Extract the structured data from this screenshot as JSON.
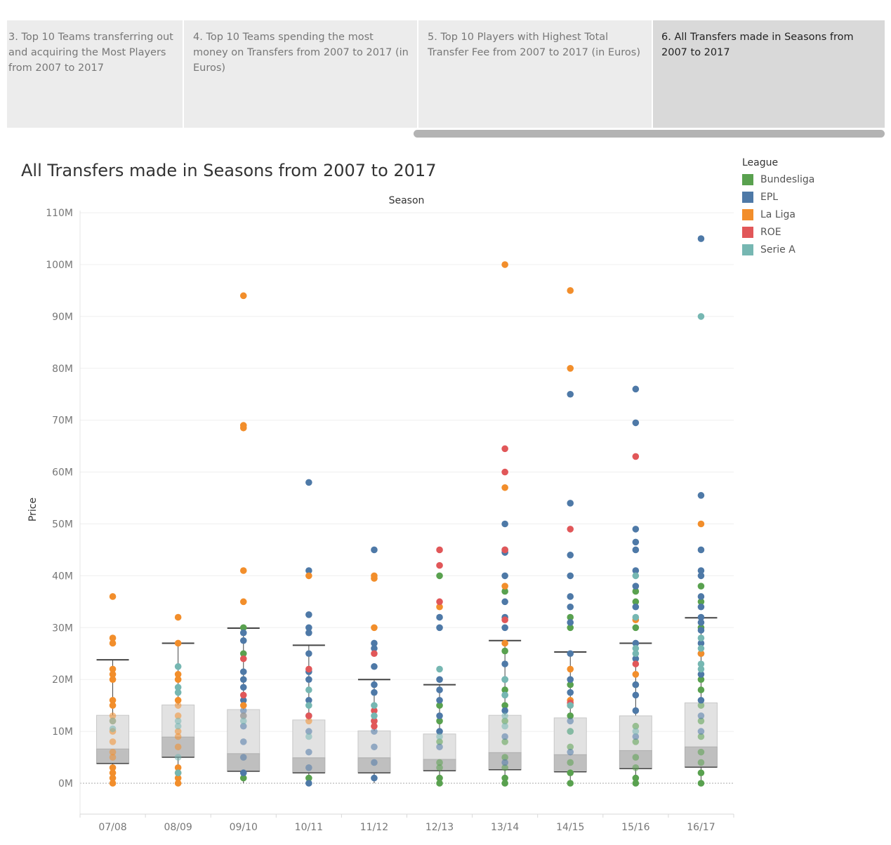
{
  "tabs": [
    {
      "label": "3. Top 10 Teams transferring out and acquiring the Most Players from 2007 to 2017",
      "active": false
    },
    {
      "label": "4. Top 10 Teams spending the most money on Transfers from 2007 to 2017 (in Euros)",
      "active": false
    },
    {
      "label": "5. Top 10 Players with Highest Total Transfer Fee from 2007 to 2017 (in Euros)",
      "active": false
    },
    {
      "label": "6. All Transfers made in Seasons from 2007 to 2017",
      "active": true
    }
  ],
  "legend": {
    "title": "League",
    "items": [
      {
        "label": "Bundesliga",
        "color": "#59a14f"
      },
      {
        "label": "EPL",
        "color": "#4e79a7"
      },
      {
        "label": "La Liga",
        "color": "#f28e2b"
      },
      {
        "label": "ROE",
        "color": "#e15759"
      },
      {
        "label": "Serie A",
        "color": "#76b7b2"
      }
    ]
  },
  "chart_data": {
    "type": "scatter",
    "title": "All Transfers made in Seasons from 2007 to 2017",
    "xlabel": "Season",
    "ylabel": "Price",
    "ylim": [
      -6,
      111
    ],
    "y_ticks": [
      "0M",
      "10M",
      "20M",
      "30M",
      "40M",
      "50M",
      "60M",
      "70M",
      "80M",
      "90M",
      "100M",
      "110M"
    ],
    "categories": [
      "07/08",
      "08/09",
      "09/10",
      "10/11",
      "11/12",
      "12/13",
      "13/14",
      "14/15",
      "15/16",
      "16/17"
    ],
    "boxplots": [
      {
        "season": "07/08",
        "lower_whisker": 0,
        "q1": 3.8,
        "median": 6.6,
        "q3": 13.1,
        "upper_whisker": 23.8
      },
      {
        "season": "08/09",
        "lower_whisker": 0,
        "q1": 5.0,
        "median": 8.9,
        "q3": 15.1,
        "upper_whisker": 27.0
      },
      {
        "season": "09/10",
        "lower_whisker": 0,
        "q1": 2.3,
        "median": 5.7,
        "q3": 14.2,
        "upper_whisker": 29.9
      },
      {
        "season": "10/11",
        "lower_whisker": 0,
        "q1": 2.0,
        "median": 4.9,
        "q3": 12.2,
        "upper_whisker": 26.6
      },
      {
        "season": "11/12",
        "lower_whisker": 0,
        "q1": 2.0,
        "median": 4.9,
        "q3": 10.1,
        "upper_whisker": 20.0
      },
      {
        "season": "12/13",
        "lower_whisker": 0,
        "q1": 2.4,
        "median": 4.6,
        "q3": 9.5,
        "upper_whisker": 19.0
      },
      {
        "season": "13/14",
        "lower_whisker": 0,
        "q1": 2.6,
        "median": 5.9,
        "q3": 13.1,
        "upper_whisker": 27.5
      },
      {
        "season": "14/15",
        "lower_whisker": 0,
        "q1": 2.2,
        "median": 5.5,
        "q3": 12.6,
        "upper_whisker": 25.3
      },
      {
        "season": "15/16",
        "lower_whisker": 0,
        "q1": 2.8,
        "median": 6.3,
        "q3": 13.0,
        "upper_whisker": 27.0
      },
      {
        "season": "16/17",
        "lower_whisker": 0,
        "q1": 3.1,
        "median": 7.0,
        "q3": 15.5,
        "upper_whisker": 31.9
      }
    ],
    "series": [
      {
        "name": "Bundesliga",
        "points": [
          [
            "09/10",
            30
          ],
          [
            "09/10",
            25
          ],
          [
            "09/10",
            1
          ],
          [
            "10/11",
            1
          ],
          [
            "12/13",
            40
          ],
          [
            "12/13",
            15
          ],
          [
            "12/13",
            12
          ],
          [
            "12/13",
            8
          ],
          [
            "12/13",
            4
          ],
          [
            "12/13",
            3
          ],
          [
            "12/13",
            1
          ],
          [
            "12/13",
            0
          ],
          [
            "13/14",
            37
          ],
          [
            "13/14",
            25.5
          ],
          [
            "13/14",
            18
          ],
          [
            "13/14",
            15
          ],
          [
            "13/14",
            12
          ],
          [
            "13/14",
            8
          ],
          [
            "13/14",
            5
          ],
          [
            "13/14",
            3
          ],
          [
            "13/14",
            1
          ],
          [
            "13/14",
            0
          ],
          [
            "14/15",
            32
          ],
          [
            "14/15",
            30
          ],
          [
            "14/15",
            19
          ],
          [
            "14/15",
            13
          ],
          [
            "14/15",
            10
          ],
          [
            "14/15",
            7
          ],
          [
            "14/15",
            4
          ],
          [
            "14/15",
            2
          ],
          [
            "14/15",
            0
          ],
          [
            "15/16",
            37
          ],
          [
            "15/16",
            35
          ],
          [
            "15/16",
            30
          ],
          [
            "15/16",
            19
          ],
          [
            "15/16",
            11
          ],
          [
            "15/16",
            8
          ],
          [
            "15/16",
            5
          ],
          [
            "15/16",
            3
          ],
          [
            "15/16",
            1
          ],
          [
            "15/16",
            0
          ],
          [
            "16/17",
            38
          ],
          [
            "16/17",
            35
          ],
          [
            "16/17",
            30
          ],
          [
            "16/17",
            20
          ],
          [
            "16/17",
            18
          ],
          [
            "16/17",
            15
          ],
          [
            "16/17",
            12
          ],
          [
            "16/17",
            9
          ],
          [
            "16/17",
            6
          ],
          [
            "16/17",
            4
          ],
          [
            "16/17",
            2
          ],
          [
            "16/17",
            0
          ]
        ]
      },
      {
        "name": "EPL",
        "points": [
          [
            "09/10",
            29
          ],
          [
            "09/10",
            27.5
          ],
          [
            "09/10",
            21.5
          ],
          [
            "09/10",
            20
          ],
          [
            "09/10",
            18.5
          ],
          [
            "09/10",
            16
          ],
          [
            "09/10",
            14
          ],
          [
            "09/10",
            11
          ],
          [
            "09/10",
            8
          ],
          [
            "09/10",
            5
          ],
          [
            "09/10",
            2
          ],
          [
            "10/11",
            58
          ],
          [
            "10/11",
            41
          ],
          [
            "10/11",
            32.5
          ],
          [
            "10/11",
            30
          ],
          [
            "10/11",
            29
          ],
          [
            "10/11",
            25
          ],
          [
            "10/11",
            21.5
          ],
          [
            "10/11",
            20
          ],
          [
            "10/11",
            16
          ],
          [
            "10/11",
            13
          ],
          [
            "10/11",
            10
          ],
          [
            "10/11",
            6
          ],
          [
            "10/11",
            3
          ],
          [
            "10/11",
            0
          ],
          [
            "11/12",
            45
          ],
          [
            "11/12",
            27
          ],
          [
            "11/12",
            26
          ],
          [
            "11/12",
            22.5
          ],
          [
            "11/12",
            19
          ],
          [
            "11/12",
            17.5
          ],
          [
            "11/12",
            12
          ],
          [
            "11/12",
            10
          ],
          [
            "11/12",
            7
          ],
          [
            "11/12",
            4
          ],
          [
            "11/12",
            1
          ],
          [
            "12/13",
            32
          ],
          [
            "12/13",
            30
          ],
          [
            "12/13",
            20
          ],
          [
            "12/13",
            18
          ],
          [
            "12/13",
            16
          ],
          [
            "12/13",
            13
          ],
          [
            "12/13",
            10
          ],
          [
            "12/13",
            7
          ],
          [
            "13/14",
            50
          ],
          [
            "13/14",
            45
          ],
          [
            "13/14",
            44.5
          ],
          [
            "13/14",
            40
          ],
          [
            "13/14",
            35
          ],
          [
            "13/14",
            32
          ],
          [
            "13/14",
            30
          ],
          [
            "13/14",
            23
          ],
          [
            "13/14",
            20
          ],
          [
            "13/14",
            17
          ],
          [
            "13/14",
            14
          ],
          [
            "13/14",
            9
          ],
          [
            "13/14",
            4
          ],
          [
            "14/15",
            75
          ],
          [
            "14/15",
            54
          ],
          [
            "14/15",
            44
          ],
          [
            "14/15",
            40
          ],
          [
            "14/15",
            36
          ],
          [
            "14/15",
            34
          ],
          [
            "14/15",
            31
          ],
          [
            "14/15",
            25
          ],
          [
            "14/15",
            20
          ],
          [
            "14/15",
            17.5
          ],
          [
            "14/15",
            12
          ],
          [
            "14/15",
            6
          ],
          [
            "15/16",
            76
          ],
          [
            "15/16",
            69.5
          ],
          [
            "15/16",
            49
          ],
          [
            "15/16",
            46.5
          ],
          [
            "15/16",
            45
          ],
          [
            "15/16",
            41
          ],
          [
            "15/16",
            38
          ],
          [
            "15/16",
            34
          ],
          [
            "15/16",
            27
          ],
          [
            "15/16",
            24
          ],
          [
            "15/16",
            19
          ],
          [
            "15/16",
            17
          ],
          [
            "15/16",
            14
          ],
          [
            "15/16",
            9
          ],
          [
            "16/17",
            105
          ],
          [
            "16/17",
            55.5
          ],
          [
            "16/17",
            45
          ],
          [
            "16/17",
            41
          ],
          [
            "16/17",
            40
          ],
          [
            "16/17",
            36
          ],
          [
            "16/17",
            34
          ],
          [
            "16/17",
            32
          ],
          [
            "16/17",
            31
          ],
          [
            "16/17",
            29.5
          ],
          [
            "16/17",
            27
          ],
          [
            "16/17",
            25
          ],
          [
            "16/17",
            21
          ],
          [
            "16/17",
            16
          ],
          [
            "16/17",
            13
          ],
          [
            "16/17",
            10
          ]
        ]
      },
      {
        "name": "La Liga",
        "points": [
          [
            "07/08",
            36
          ],
          [
            "07/08",
            28
          ],
          [
            "07/08",
            27
          ],
          [
            "07/08",
            22
          ],
          [
            "07/08",
            21
          ],
          [
            "07/08",
            20
          ],
          [
            "07/08",
            16
          ],
          [
            "07/08",
            15
          ],
          [
            "07/08",
            13
          ],
          [
            "07/08",
            12
          ],
          [
            "07/08",
            10
          ],
          [
            "07/08",
            8
          ],
          [
            "07/08",
            6
          ],
          [
            "07/08",
            5
          ],
          [
            "07/08",
            3
          ],
          [
            "07/08",
            2
          ],
          [
            "07/08",
            1
          ],
          [
            "07/08",
            0
          ],
          [
            "08/09",
            32
          ],
          [
            "08/09",
            27
          ],
          [
            "08/09",
            21
          ],
          [
            "08/09",
            20
          ],
          [
            "08/09",
            16
          ],
          [
            "08/09",
            15
          ],
          [
            "08/09",
            13
          ],
          [
            "08/09",
            10
          ],
          [
            "08/09",
            9
          ],
          [
            "08/09",
            7
          ],
          [
            "08/09",
            3
          ],
          [
            "08/09",
            2
          ],
          [
            "08/09",
            1
          ],
          [
            "08/09",
            0
          ],
          [
            "09/10",
            94
          ],
          [
            "09/10",
            69
          ],
          [
            "09/10",
            68.5
          ],
          [
            "09/10",
            41
          ],
          [
            "09/10",
            35
          ],
          [
            "09/10",
            15
          ],
          [
            "10/11",
            40
          ],
          [
            "10/11",
            12
          ],
          [
            "11/12",
            40
          ],
          [
            "11/12",
            39.5
          ],
          [
            "11/12",
            30
          ],
          [
            "12/13",
            34
          ],
          [
            "13/14",
            100
          ],
          [
            "13/14",
            57
          ],
          [
            "13/14",
            38
          ],
          [
            "13/14",
            27
          ],
          [
            "14/15",
            95
          ],
          [
            "14/15",
            80
          ],
          [
            "14/15",
            22
          ],
          [
            "14/15",
            16
          ],
          [
            "14/15",
            15
          ],
          [
            "15/16",
            31.5
          ],
          [
            "15/16",
            21
          ],
          [
            "16/17",
            50
          ],
          [
            "16/17",
            25
          ]
        ]
      },
      {
        "name": "ROE",
        "points": [
          [
            "09/10",
            24
          ],
          [
            "09/10",
            17
          ],
          [
            "09/10",
            13
          ],
          [
            "10/11",
            22
          ],
          [
            "10/11",
            13
          ],
          [
            "11/12",
            25
          ],
          [
            "11/12",
            14
          ],
          [
            "11/12",
            12
          ],
          [
            "11/12",
            11
          ],
          [
            "12/13",
            45
          ],
          [
            "12/13",
            42
          ],
          [
            "12/13",
            35
          ],
          [
            "13/14",
            64.5
          ],
          [
            "13/14",
            60
          ],
          [
            "13/14",
            45
          ],
          [
            "13/14",
            31.5
          ],
          [
            "14/15",
            49
          ],
          [
            "14/15",
            15.5
          ],
          [
            "15/16",
            63
          ],
          [
            "15/16",
            23
          ]
        ]
      },
      {
        "name": "Serie A",
        "points": [
          [
            "07/08",
            12
          ],
          [
            "07/08",
            10.5
          ],
          [
            "08/09",
            22.5
          ],
          [
            "08/09",
            18.5
          ],
          [
            "08/09",
            17.5
          ],
          [
            "08/09",
            12
          ],
          [
            "08/09",
            11
          ],
          [
            "08/09",
            5
          ],
          [
            "08/09",
            2
          ],
          [
            "09/10",
            13
          ],
          [
            "09/10",
            12
          ],
          [
            "10/11",
            18
          ],
          [
            "10/11",
            15
          ],
          [
            "10/11",
            9
          ],
          [
            "11/12",
            15
          ],
          [
            "11/12",
            13
          ],
          [
            "12/13",
            22
          ],
          [
            "12/13",
            9
          ],
          [
            "13/14",
            20
          ],
          [
            "13/14",
            17
          ],
          [
            "13/14",
            13
          ],
          [
            "13/14",
            11
          ],
          [
            "14/15",
            15
          ],
          [
            "14/15",
            10
          ],
          [
            "15/16",
            40
          ],
          [
            "15/16",
            32
          ],
          [
            "15/16",
            26
          ],
          [
            "15/16",
            25
          ],
          [
            "15/16",
            10
          ],
          [
            "16/17",
            90
          ],
          [
            "16/17",
            28
          ],
          [
            "16/17",
            26
          ],
          [
            "16/17",
            23
          ],
          [
            "16/17",
            22
          ]
        ]
      }
    ]
  }
}
